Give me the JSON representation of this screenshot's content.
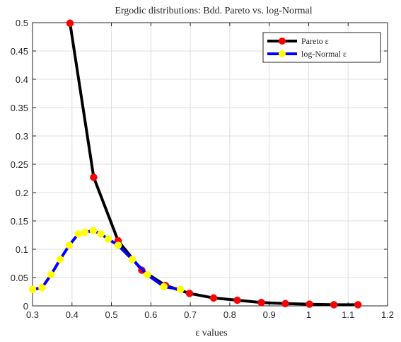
{
  "chart_data": {
    "type": "line",
    "title": "Ergodic distributions: Bdd. Pareto vs. log-Normal",
    "xlabel": "ε values",
    "ylabel": "",
    "xlim": [
      0.3,
      1.2
    ],
    "ylim": [
      0,
      0.5
    ],
    "xticks": [
      "0.3",
      "0.4",
      "0.5",
      "0.6",
      "0.7",
      "0.8",
      "0.9",
      "1",
      "1.1",
      "1.2"
    ],
    "yticks": [
      "0",
      "0.05",
      "0.1",
      "0.15",
      "0.2",
      "0.25",
      "0.3",
      "0.35",
      "0.4",
      "0.45",
      "0.5"
    ],
    "grid": true,
    "legend_position": "top-right",
    "series": [
      {
        "name": "Pareto ε",
        "line_color": "#000000",
        "marker_color": "#ff0000",
        "x": [
          0.395,
          0.455,
          0.517,
          0.577,
          0.637,
          0.698,
          0.759,
          0.819,
          0.88,
          0.941,
          1.002,
          1.064,
          1.125
        ],
        "y": [
          0.499,
          0.227,
          0.115,
          0.063,
          0.036,
          0.022,
          0.014,
          0.01,
          0.006,
          0.004,
          0.003,
          0.002,
          0.002
        ]
      },
      {
        "name": "log-Normal ε",
        "line_color": "#0000ff",
        "marker_color": "#ffff00",
        "x": [
          0.3,
          0.324,
          0.347,
          0.37,
          0.393,
          0.416,
          0.433,
          0.454,
          0.473,
          0.492,
          0.517,
          0.553,
          0.591,
          0.633,
          0.675
        ],
        "y": [
          0.029,
          0.032,
          0.055,
          0.082,
          0.107,
          0.127,
          0.13,
          0.133,
          0.127,
          0.118,
          0.107,
          0.082,
          0.055,
          0.034,
          0.029
        ]
      }
    ]
  }
}
